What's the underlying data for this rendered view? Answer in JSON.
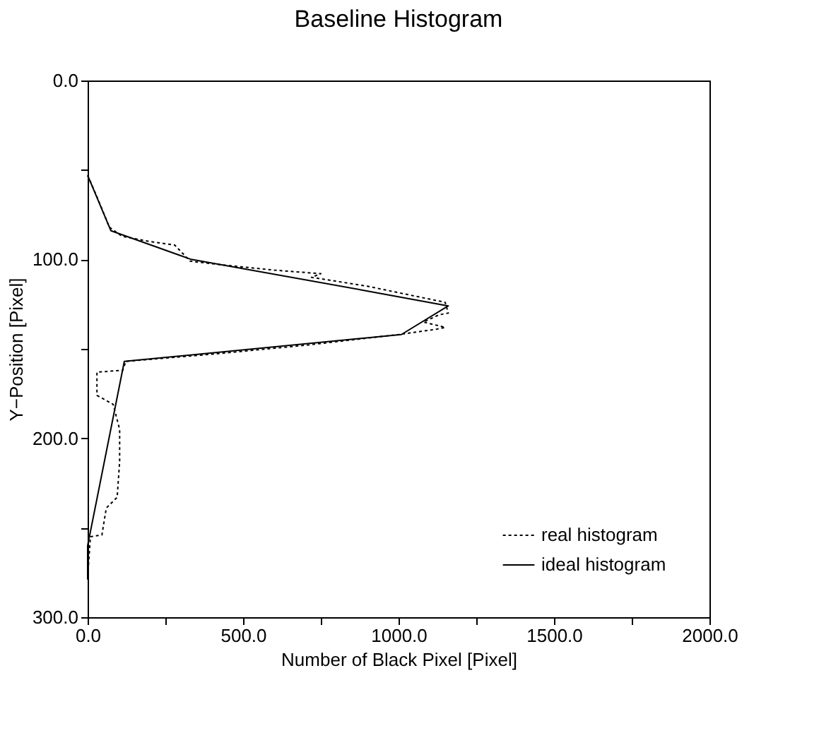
{
  "chart_data": {
    "type": "line",
    "title": "Baseline Histogram",
    "xlabel": "Number of Black Pixel  [Pixel]",
    "ylabel": "Y−Position [Pixel]",
    "xlim": [
      0,
      2000
    ],
    "ylim": [
      300,
      0
    ],
    "xticks": [
      {
        "value": 0,
        "label": "0.0"
      },
      {
        "value": 250,
        "label": null
      },
      {
        "value": 500,
        "label": "500.0"
      },
      {
        "value": 750,
        "label": null
      },
      {
        "value": 1000,
        "label": "1000.0"
      },
      {
        "value": 1250,
        "label": null
      },
      {
        "value": 1500,
        "label": "1500.0"
      },
      {
        "value": 1750,
        "label": null
      },
      {
        "value": 2000,
        "label": "2000.0"
      }
    ],
    "yticks": [
      {
        "value": 0,
        "label": "0.0"
      },
      {
        "value": 50,
        "label": null
      },
      {
        "value": 100,
        "label": "100.0"
      },
      {
        "value": 150,
        "label": null
      },
      {
        "value": 200,
        "label": "200.0"
      },
      {
        "value": 250,
        "label": null
      },
      {
        "value": 300,
        "label": "300.0"
      }
    ],
    "grid": false,
    "legend": "bottom right",
    "marker": "none",
    "series": [
      {
        "name": "real histogram",
        "color": "#000000",
        "line_style": "dotted",
        "x": [
          0,
          30,
          70,
          110,
          200,
          280,
          330,
          430,
          600,
          750,
          720,
          900,
          1150,
          1160,
          1130,
          1080,
          1150,
          1123,
          1000,
          700,
          400,
          123,
          113,
          30,
          30,
          82,
          103,
          103,
          95,
          60,
          46,
          9,
          0
        ],
        "values": [
          53,
          65,
          82,
          87,
          90,
          92,
          101,
          103,
          106,
          108,
          110,
          115,
          124,
          130,
          131,
          135,
          138,
          139,
          142,
          148,
          153,
          157,
          162,
          163,
          176,
          181,
          195,
          213,
          233,
          239,
          254,
          255,
          278
        ]
      },
      {
        "name": "ideal histogram",
        "color": "#000000",
        "line_style": "solid",
        "x": [
          0,
          75,
          333,
          879,
          1160,
          1009,
          118,
          0,
          0
        ],
        "values": [
          53,
          84,
          100,
          117,
          126,
          142,
          157,
          260,
          279
        ]
      }
    ]
  }
}
